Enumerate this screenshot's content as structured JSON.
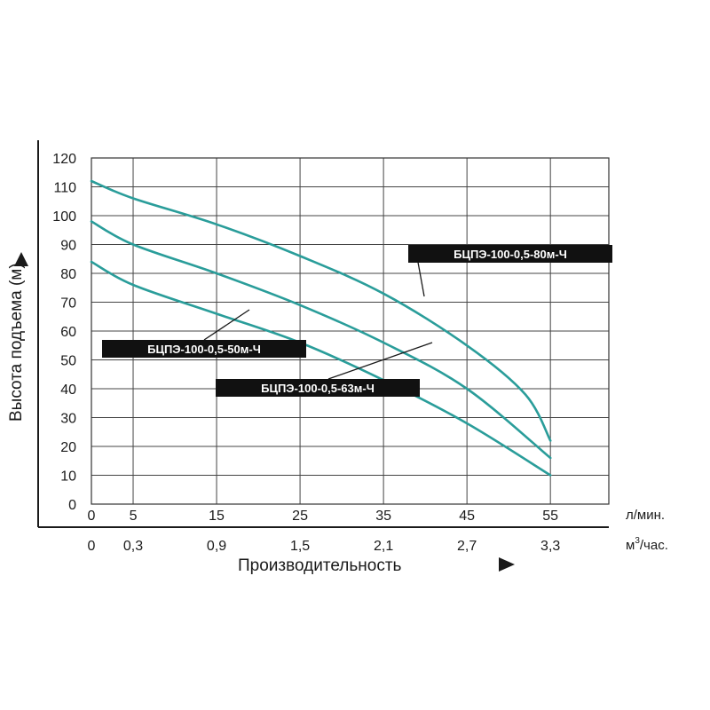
{
  "chart_data": {
    "type": "line",
    "ylabel": "Высота подъема (м)",
    "xlabel": "Производительность",
    "ylim": [
      0,
      120
    ],
    "yticks": [
      0,
      10,
      20,
      30,
      40,
      50,
      60,
      70,
      80,
      90,
      100,
      110,
      120
    ],
    "xlim": [
      0,
      62
    ],
    "x_ticks_lmin": [
      "0",
      "5",
      "15",
      "25",
      "35",
      "45",
      "55"
    ],
    "x_ticks_m3h": [
      "0",
      "0,3",
      "0,9",
      "1,5",
      "2,1",
      "2,7",
      "3,3"
    ],
    "x_unit_lmin": "л/мин.",
    "x_unit_m3h_base": "м",
    "x_unit_m3h_sup": "3",
    "x_unit_m3h_suffix": "/час.",
    "grid": true,
    "line_color": "#2a9d9a",
    "label_bg": "#111111",
    "series": [
      {
        "name": "БЦПЭ-100-0,5-80м-Ч",
        "x": [
          0,
          5,
          15,
          25,
          35,
          45,
          52,
          55
        ],
        "y": [
          112,
          106,
          97,
          86,
          73,
          55,
          38,
          22
        ]
      },
      {
        "name": "БЦПЭ-100-0,5-63м-Ч",
        "x": [
          0,
          5,
          15,
          25,
          35,
          45,
          55
        ],
        "y": [
          98,
          90,
          80,
          69,
          56,
          40,
          16
        ]
      },
      {
        "name": "БЦПЭ-100-0,5-50м-Ч",
        "x": [
          0,
          5,
          15,
          25,
          35,
          45,
          55
        ],
        "y": [
          84,
          76,
          66,
          56,
          43,
          28,
          10
        ]
      }
    ]
  }
}
